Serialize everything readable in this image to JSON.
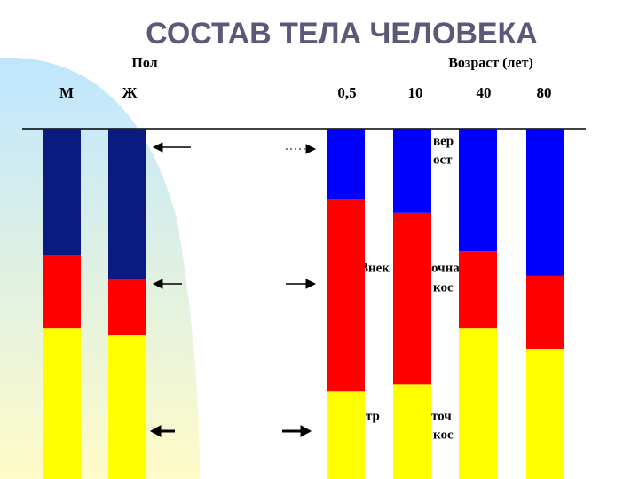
{
  "title": "СОСТАВ ТЕЛА ЧЕЛОВЕКА",
  "annotations": [
    "вер",
    "ост",
    "Внек",
    "очна",
    "кос",
    "тр",
    "точ",
    "кос"
  ],
  "chart_data": [
    {
      "type": "bar",
      "stacked": true,
      "title": "Пол",
      "categories": [
        "М",
        "Ж"
      ],
      "ylim": [
        0,
        100
      ],
      "series": [
        {
          "color": "#ffff00",
          "values": [
            43,
            41
          ]
        },
        {
          "color": "#ff0000",
          "values": [
            21,
            16
          ]
        },
        {
          "color": "#0a1a80",
          "values": [
            36,
            43
          ]
        }
      ]
    },
    {
      "type": "bar",
      "stacked": true,
      "title": "Возраст (лет)",
      "categories": [
        "0,5",
        "10",
        "40",
        "80"
      ],
      "ylim": [
        0,
        100
      ],
      "series": [
        {
          "color": "#ffff00",
          "values": [
            25,
            27,
            43,
            37
          ]
        },
        {
          "color": "#ff0000",
          "values": [
            55,
            49,
            22,
            21
          ]
        },
        {
          "color": "#0000ff",
          "values": [
            20,
            24,
            35,
            42
          ]
        }
      ]
    }
  ]
}
